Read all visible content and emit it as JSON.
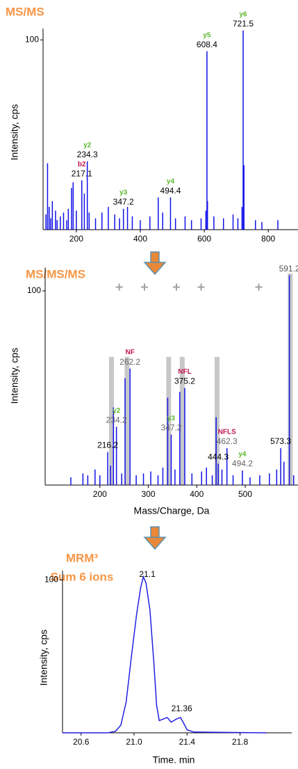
{
  "chart_data": [
    {
      "type": "stem",
      "title": "MS/MS",
      "ylabel": "Intensity, cps",
      "color": "#1010e8",
      "x": [
        105,
        110,
        115,
        120,
        125,
        135,
        140,
        150,
        160,
        170,
        175,
        185,
        190,
        200,
        217.1,
        225,
        234.3,
        240,
        260,
        280,
        300,
        320,
        335,
        347.2,
        360,
        375,
        400,
        430,
        456,
        470,
        494.4,
        510,
        540,
        560,
        590,
        605,
        608.4,
        610,
        630,
        660,
        690,
        705,
        718,
        721.5,
        724,
        760,
        780,
        830
      ],
      "values": [
        8,
        35,
        12,
        6,
        15,
        10,
        5,
        7,
        9,
        5,
        11,
        22,
        25,
        10,
        26,
        19,
        36,
        9,
        6,
        9,
        12,
        8,
        6,
        11,
        12,
        7,
        5,
        7,
        17,
        9,
        17,
        6,
        7,
        5,
        6,
        10,
        94,
        15,
        7,
        6,
        8,
        6,
        12,
        105,
        34,
        5,
        4,
        5
      ],
      "xlim": [
        96,
        893
      ],
      "ylim": [
        0,
        106
      ],
      "xticks": [
        200,
        400,
        600,
        800
      ],
      "yticks": [
        100
      ],
      "annotations": [
        {
          "ion": "y6",
          "ion_color": "#5cb82d",
          "mz": 721.5,
          "color": "#000000"
        },
        {
          "ion": "y5",
          "ion_color": "#5cb82d",
          "mz": 608.4,
          "color": "#000000"
        },
        {
          "ion": "y2",
          "ion_color": "#5cb82d",
          "mz": 234.3,
          "color": "#000000"
        },
        {
          "ion": "b2",
          "ion_color": "#c0184f",
          "mz": 217.1,
          "color": "#000000"
        },
        {
          "ion": "y3",
          "ion_color": "#5cb82d",
          "mz": 347.2,
          "color": "#000000"
        },
        {
          "ion": "y4",
          "ion_color": "#5cb82d",
          "mz": 494.4,
          "color": "#000000"
        }
      ]
    },
    {
      "type": "stem",
      "title": "MS/MS/MS",
      "ylabel": "Intensity, cps",
      "xlabel": "Mass/Charge, Da",
      "color": "#1010e8",
      "x": [
        140,
        165,
        175,
        190,
        200,
        216.2,
        222,
        228,
        234.2,
        245,
        252,
        262.2,
        275,
        290,
        305,
        320,
        330,
        340,
        347.2,
        355,
        365,
        375.2,
        390,
        410,
        420,
        432,
        440,
        444.3,
        452,
        462.3,
        475,
        494.2,
        510,
        530,
        550,
        565,
        573.3,
        580,
        591.2,
        600
      ],
      "values": [
        4,
        6,
        5,
        8,
        5,
        17,
        10,
        40,
        30,
        6,
        55,
        60,
        5,
        6,
        7,
        5,
        9,
        45,
        26,
        8,
        48,
        50,
        6,
        7,
        9,
        5,
        35,
        11,
        8,
        19,
        5,
        7.5,
        4,
        5,
        6,
        8,
        19,
        12,
        108,
        5
      ],
      "xlim": [
        87,
        609
      ],
      "ylim": [
        0,
        112
      ],
      "xticks": [
        200,
        300,
        400,
        500
      ],
      "yticks": [
        100
      ],
      "highlights": {
        "color": "#c8c8c8",
        "x": [
          224,
          256,
          342,
          370,
          442,
          593
        ],
        "values": [
          66,
          66,
          66,
          66,
          66,
          109
        ]
      },
      "plus_marks": [
        240,
        292,
        358,
        409,
        528
      ],
      "annotations": [
        {
          "mz": 216.2,
          "color": "#000000"
        },
        {
          "ion": "y2",
          "ion_color": "#5cb82d",
          "mz": 234.2,
          "color": "#666666"
        },
        {
          "ion": "NF",
          "ion_color": "#c0184f",
          "mz": 262.2,
          "color": "#666666"
        },
        {
          "ion": "y3",
          "ion_color": "#5cb82d",
          "mz": 347.2,
          "color": "#666666"
        },
        {
          "ion": "NFL",
          "ion_color": "#c0184f",
          "mz": 375.2,
          "color": "#000000"
        },
        {
          "mz": 444.3,
          "color": "#000000"
        },
        {
          "ion": "NFLS",
          "ion_color": "#c0184f",
          "mz": 462.3,
          "color": "#666666"
        },
        {
          "ion": "y4",
          "ion_color": "#5cb82d",
          "mz": 494.2,
          "color": "#666666"
        },
        {
          "mz": 573.3,
          "color": "#000000"
        },
        {
          "mz": 591.2,
          "color": "#555555"
        }
      ]
    },
    {
      "type": "line",
      "title": "MRM³",
      "subtitle": "Sum 6 ions",
      "ylabel": "Intensity, cps",
      "xlabel": "Time. min",
      "color": "#2020e0",
      "x": [
        20.46,
        20.8,
        20.86,
        20.9,
        20.94,
        20.98,
        21.02,
        21.05,
        21.07,
        21.09,
        21.12,
        21.15,
        21.17,
        21.19,
        21.22,
        21.25,
        21.28,
        21.32,
        21.35,
        21.37,
        21.4,
        21.45,
        22.0
      ],
      "values": [
        0,
        0,
        1,
        5,
        20,
        50,
        78,
        95,
        102,
        98,
        80,
        45,
        18,
        8,
        9,
        10,
        7,
        9,
        10,
        7,
        2,
        0.5,
        0
      ],
      "xlim": [
        20.46,
        22.19
      ],
      "ylim": [
        0,
        106
      ],
      "xticks": [
        20.6,
        {
          "value": 21,
          "label": "21.0"
        },
        21.4,
        21.8
      ],
      "yticks": [
        100
      ],
      "annotations": [
        21.1,
        21.36
      ]
    }
  ]
}
